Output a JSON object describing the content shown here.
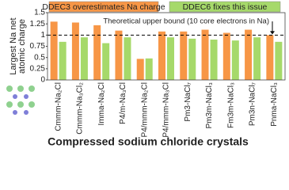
{
  "chart_data": {
    "type": "bar",
    "categories": [
      "Cmmm-Na₂Cl",
      "Cmmm-Na₃Cl₂",
      "Imma-Na₂Cl",
      "P4/m-Na₃Cl",
      "P4/mmm-Na₂Cl",
      "P4/mmm-Na₃Cl",
      "Pm3-NaCl₇",
      "Pm3m-NaCl₃",
      "Fm3m-NaCl₃",
      "Pm3n-NaCl₇",
      "Pnma-NaCl₃"
    ],
    "series": [
      {
        "name": "DDEC3 overestimates Na charge",
        "color": "#f79646",
        "values": [
          1.3,
          1.28,
          1.22,
          1.1,
          0.47,
          1.08,
          1.08,
          1.12,
          1.05,
          1.12,
          1.0
        ]
      },
      {
        "name": "DDEC6 fixes this issue",
        "color": "#a6d96a",
        "values": [
          0.85,
          0.95,
          0.82,
          0.95,
          0.48,
          0.95,
          0.92,
          0.9,
          0.88,
          0.95,
          0.85
        ]
      }
    ],
    "ylabel": [
      "Largest Na net",
      "atomic charge"
    ],
    "xlabel": "Compressed sodium chloride crystals",
    "reference_line": {
      "value": 1,
      "label": "Theoretical upper bound (10 core electrons in Na)"
    },
    "ylim": [
      0,
      1.5
    ],
    "yticks": [
      0,
      0.25,
      0.5,
      0.75,
      1,
      1.25,
      1.5
    ],
    "grid": false
  }
}
